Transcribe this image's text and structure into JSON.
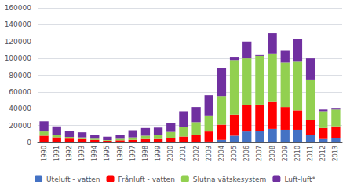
{
  "chart_data": {
    "type": "bar",
    "stacked": true,
    "grid": true,
    "legend": "bottom",
    "categories": [
      "1990",
      "1991",
      "1992",
      "1993",
      "1994",
      "1995",
      "1996",
      "1997",
      "1998",
      "1999",
      "2000",
      "2001",
      "2002",
      "2003",
      "2004",
      "2005",
      "2006",
      "2007",
      "2008",
      "2009",
      "2010",
      "2011",
      "2012",
      "2013"
    ],
    "series": [
      {
        "name": "Uteluft - vatten",
        "color": "#4472C4",
        "values": [
          0,
          0,
          0,
          0,
          0,
          0,
          0,
          0,
          0,
          0,
          0,
          0,
          0,
          1000,
          3000,
          8000,
          13000,
          14000,
          16000,
          15000,
          15000,
          9000,
          4000,
          5000
        ]
      },
      {
        "name": "Frånluft - vatten",
        "color": "#FF0000",
        "values": [
          8000,
          6000,
          4500,
          4000,
          3000,
          2000,
          2500,
          3000,
          4000,
          4000,
          5500,
          7000,
          9000,
          12000,
          18000,
          25000,
          31000,
          31000,
          32000,
          27000,
          23000,
          18000,
          13000,
          14000
        ]
      },
      {
        "name": "Slutna vätskesystem",
        "color": "#92D050",
        "values": [
          5000,
          3000,
          2000,
          2000,
          1500,
          800,
          1800,
          3000,
          4000,
          4500,
          7000,
          11000,
          15000,
          19000,
          34000,
          65000,
          56000,
          58000,
          57000,
          53000,
          58000,
          47000,
          20000,
          20000
        ]
      },
      {
        "name": "Luft-luft*",
        "color": "#7030A0",
        "values": [
          12000,
          10000,
          7000,
          6000,
          4000,
          4000,
          4500,
          8500,
          9000,
          9000,
          10000,
          19000,
          18000,
          24000,
          33000,
          3000,
          20000,
          1000,
          25000,
          14000,
          27000,
          26000,
          2000,
          2000
        ]
      }
    ],
    "ylim": [
      0,
      160000
    ],
    "yticks": [
      0,
      20000,
      40000,
      60000,
      80000,
      100000,
      120000,
      140000,
      160000
    ]
  }
}
